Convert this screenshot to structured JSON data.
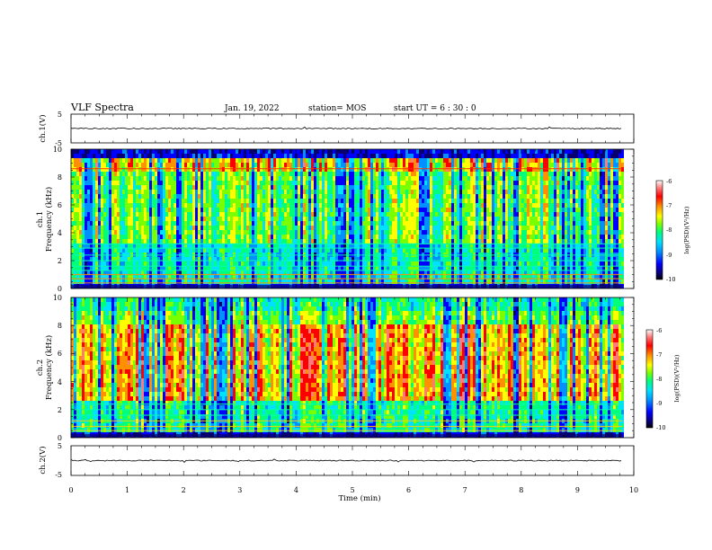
{
  "header": {
    "title": "VLF Spectra",
    "date": "Jan. 19, 2022",
    "station": "station= MOS",
    "start_ut": "start  UT  =   6  : 30 : 0"
  },
  "chart_data": {
    "type": "heatmap",
    "xlabel": "Time  (min)",
    "xlim": [
      0,
      10
    ],
    "x_ticks": [
      "0",
      "1",
      "2",
      "3",
      "4",
      "5",
      "6",
      "7",
      "8",
      "9",
      "10"
    ],
    "data_end_min": 9.8,
    "panels": [
      {
        "id": "ch1v",
        "kind": "line",
        "ylabel": "ch.1(V)",
        "ylim": [
          -5,
          5
        ],
        "y_ticks": [
          "5",
          "-5"
        ],
        "trace_level": 0
      },
      {
        "id": "ch1",
        "kind": "spectrogram",
        "ylabel_top": "ch.1",
        "ylabel": "Frequency (kHz)",
        "ylim": [
          0,
          10
        ],
        "y_ticks": [
          "0",
          "2",
          "4",
          "6",
          "8",
          "10"
        ],
        "colorbar": {
          "label": "log(PSD)(V²/Hz)",
          "range": [
            -10,
            -6
          ],
          "ticks": [
            "-6",
            "-7",
            "-8",
            "-9",
            "-10"
          ]
        },
        "bands_khz": [
          0.4,
          0.7,
          1.0,
          1.3,
          1.6,
          2.0,
          2.4,
          2.9,
          3.2,
          8.6
        ]
      },
      {
        "id": "ch2",
        "kind": "spectrogram",
        "ylabel_top": "ch.2",
        "ylabel": "Frequency (kHz)",
        "ylim": [
          0,
          10
        ],
        "y_ticks": [
          "0",
          "2",
          "4",
          "6",
          "8",
          "10"
        ],
        "colorbar": {
          "label": "log(PSD)(V²/Hz)",
          "range": [
            -10,
            -6
          ],
          "ticks": [
            "-6",
            "-7",
            "-8",
            "-9",
            "-10"
          ]
        },
        "bands_khz": [
          0.5,
          0.8,
          1.2,
          1.6,
          2.0,
          2.4
        ]
      },
      {
        "id": "ch2v",
        "kind": "line",
        "ylabel": "ch.2(V)",
        "ylim": [
          -5,
          5
        ],
        "y_ticks": [
          "5",
          "-5"
        ],
        "trace_level": 0
      }
    ],
    "colormap": [
      "#08006e",
      "#0000ff",
      "#0090ff",
      "#00e0ff",
      "#00ff7a",
      "#7aff00",
      "#ffff00",
      "#ff9000",
      "#ff0000",
      "#ff7a7a",
      "#ffffff"
    ]
  }
}
